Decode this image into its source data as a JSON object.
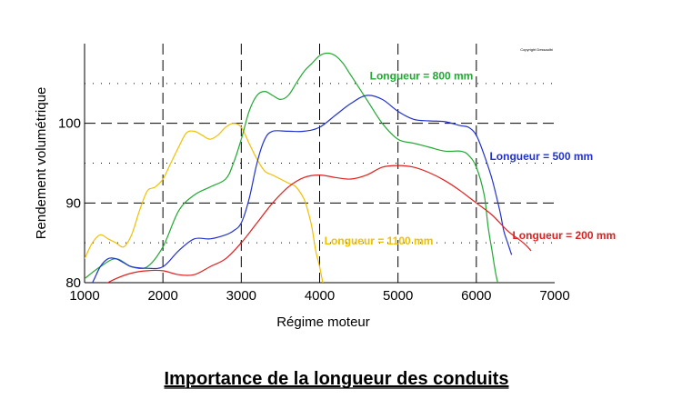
{
  "chart_data": {
    "type": "line",
    "title": "Importance de la longueur des conduits",
    "xlabel": "Régime moteur",
    "ylabel": "Rendement volumétrique",
    "copyright": "Copyright Dessaulbi",
    "xlim": [
      1000,
      7000
    ],
    "ylim": [
      80,
      110
    ],
    "x_ticks": [
      1000,
      2000,
      3000,
      4000,
      5000,
      6000,
      7000
    ],
    "y_ticks": [
      80,
      90,
      100
    ],
    "grid": true,
    "series": [
      {
        "name": "Longueur = 1100 mm",
        "color": "#f0c000",
        "x": [
          1000,
          1100,
          1200,
          1300,
          1400,
          1500,
          1600,
          1700,
          1800,
          1900,
          2000,
          2100,
          2200,
          2300,
          2400,
          2500,
          2600,
          2700,
          2800,
          2900,
          3000,
          3100,
          3200,
          3300,
          3400,
          3500,
          3600,
          3700,
          3800,
          3850,
          3900,
          3950,
          4000,
          4050
        ],
        "y": [
          83,
          85,
          86,
          85.5,
          85,
          84.5,
          86,
          89,
          91.5,
          92,
          93,
          95,
          97,
          98.8,
          99,
          98.5,
          98,
          98.5,
          99.5,
          100,
          99.5,
          97.5,
          95.5,
          94,
          93.5,
          93,
          92.5,
          92,
          90.5,
          89,
          87,
          84,
          82,
          79.5
        ]
      },
      {
        "name": "Longueur = 800 mm",
        "color": "#22a833",
        "x": [
          1000,
          1200,
          1400,
          1600,
          1800,
          2000,
          2200,
          2400,
          2600,
          2800,
          2900,
          3000,
          3100,
          3200,
          3300,
          3400,
          3500,
          3600,
          3700,
          3800,
          3900,
          4000,
          4100,
          4200,
          4300,
          4400,
          4600,
          4800,
          5000,
          5200,
          5400,
          5600,
          5800,
          5900,
          6000,
          6100,
          6150,
          6200,
          6250,
          6300
        ],
        "y": [
          80.5,
          82,
          83,
          82,
          82,
          84.5,
          89,
          91,
          92,
          93,
          95,
          98,
          101.5,
          103.5,
          104,
          103.5,
          103,
          103.5,
          105,
          106.5,
          107.5,
          108.5,
          108.8,
          108.5,
          107.5,
          106,
          103,
          100,
          98,
          97.5,
          97,
          96.5,
          96.5,
          96,
          94.5,
          91,
          87,
          84,
          81,
          79
        ]
      },
      {
        "name": "Longueur = 500 mm",
        "color": "#2233cc",
        "x": [
          1000,
          1100,
          1200,
          1300,
          1400,
          1500,
          1600,
          1800,
          2000,
          2200,
          2400,
          2600,
          2800,
          2900,
          3000,
          3100,
          3200,
          3300,
          3400,
          3600,
          3800,
          4000,
          4200,
          4400,
          4600,
          4800,
          5000,
          5200,
          5400,
          5600,
          5800,
          5900,
          6000,
          6100,
          6200,
          6300,
          6350,
          6400,
          6450
        ],
        "y": [
          78.5,
          80,
          82,
          83,
          83,
          82.5,
          82,
          81.8,
          82,
          84,
          85.5,
          85.5,
          86,
          86.5,
          87.5,
          90.5,
          95,
          98,
          99,
          99,
          99,
          99.5,
          101,
          102.5,
          103.5,
          103,
          101.5,
          100.5,
          100.3,
          100.2,
          99.7,
          99.5,
          98.5,
          96,
          93,
          89,
          86.5,
          85,
          83.5
        ]
      },
      {
        "name": "Longueur = 200 mm",
        "color": "#e02020",
        "x": [
          1100,
          1200,
          1400,
          1600,
          1800,
          2000,
          2200,
          2400,
          2600,
          2800,
          3000,
          3200,
          3400,
          3600,
          3800,
          4000,
          4200,
          4400,
          4600,
          4800,
          5000,
          5200,
          5400,
          5600,
          5800,
          6000,
          6200,
          6400,
          6600,
          6700
        ],
        "y": [
          79,
          79.5,
          80.5,
          81.2,
          81.5,
          81.5,
          81,
          81,
          82,
          83,
          85,
          87.5,
          90,
          92,
          93.2,
          93.5,
          93.2,
          93,
          93.5,
          94.5,
          94.7,
          94.5,
          93.8,
          92.8,
          91.5,
          90,
          88.5,
          86.5,
          85,
          84
        ]
      }
    ],
    "annotations": [
      {
        "series": "Longueur = 800 mm",
        "text": "Longueur = 800 mm",
        "x": 4640,
        "y": 105.5,
        "anchor": "start"
      },
      {
        "series": "Longueur = 500 mm",
        "text": "Longueur = 500 mm",
        "x": 6170,
        "y": 95.4,
        "anchor": "start"
      },
      {
        "series": "Longueur = 200 mm",
        "text": "Longueur = 200 mm",
        "x": 6460,
        "y": 85.5,
        "anchor": "start"
      },
      {
        "series": "Longueur = 1100 mm",
        "text": "Longueur = 1100 mm",
        "x": 4060,
        "y": 84.8,
        "anchor": "start"
      }
    ]
  }
}
